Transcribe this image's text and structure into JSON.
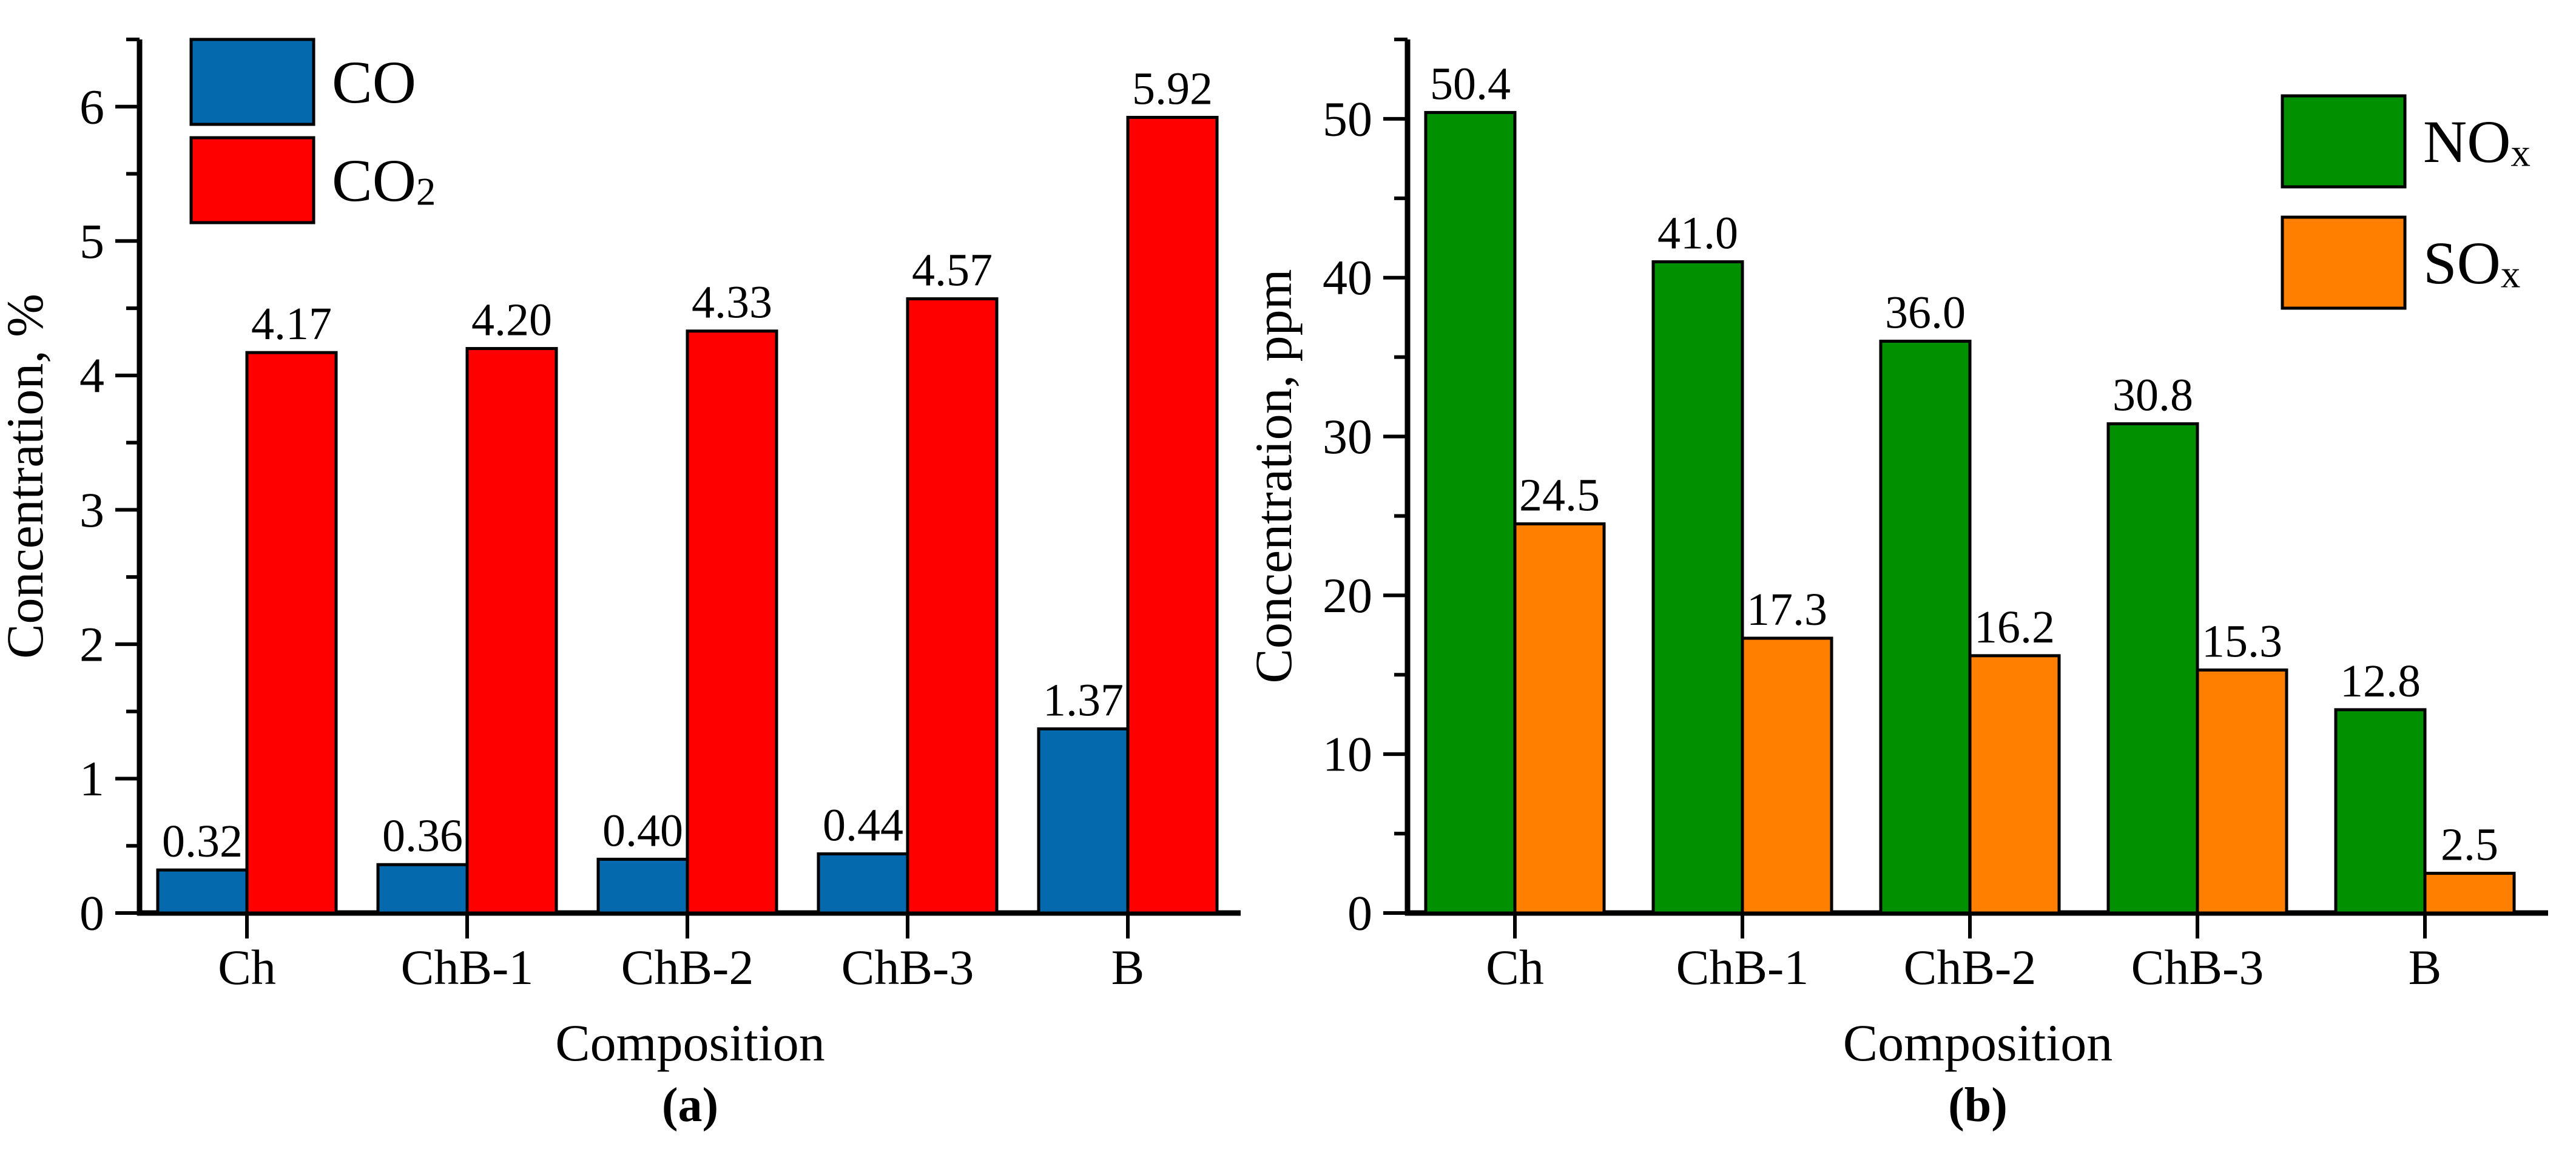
{
  "figure": {
    "background": "#FFFFFF",
    "axis_color": "#000000"
  },
  "chart_data": [
    {
      "type": "bar",
      "panel": "a",
      "caption": "(a)",
      "xlabel": "Composition",
      "ylabel": "Concentration, %",
      "categories": [
        "Ch",
        "ChB-1",
        "ChB-2",
        "ChB-3",
        "B"
      ],
      "series": [
        {
          "name": "CO",
          "sub": "",
          "color": "#0569AD",
          "values": [
            0.32,
            0.36,
            0.4,
            0.44,
            1.37
          ],
          "value_labels": [
            "0.32",
            "0.36",
            "0.40",
            "0.44",
            "1.37"
          ]
        },
        {
          "name": "CO",
          "sub": "2",
          "color": "#FF0000",
          "values": [
            4.17,
            4.2,
            4.33,
            4.57,
            5.92
          ],
          "value_labels": [
            "4.17",
            "4.20",
            "4.33",
            "4.57",
            "5.92"
          ]
        }
      ],
      "ylim": [
        0,
        6.5
      ],
      "ytick_interval": 1,
      "yminor_interval": 0.5,
      "ytick_labels": [
        "0",
        "1",
        "2",
        "3",
        "4",
        "5",
        "6"
      ],
      "legend_position": "top-left",
      "grid": false,
      "bar_edge_color": "#000000"
    },
    {
      "type": "bar",
      "panel": "b",
      "caption": "(b)",
      "xlabel": "Composition",
      "ylabel": "Concentration, ppm",
      "categories": [
        "Ch",
        "ChB-1",
        "ChB-2",
        "ChB-3",
        "B"
      ],
      "series": [
        {
          "name": "NO",
          "sub": "x",
          "color": "#009000",
          "values": [
            50.4,
            41.0,
            36.0,
            30.8,
            12.8
          ],
          "value_labels": [
            "50.4",
            "41.0",
            "36.0",
            "30.8",
            "12.8"
          ]
        },
        {
          "name": "SO",
          "sub": "x",
          "color": "#FF8000",
          "values": [
            24.5,
            17.3,
            16.2,
            15.3,
            2.5
          ],
          "value_labels": [
            "24.5",
            "17.3",
            "16.2",
            "15.3",
            "2.5"
          ]
        }
      ],
      "ylim": [
        0,
        55
      ],
      "ytick_interval": 10,
      "yminor_interval": 5,
      "ytick_labels": [
        "0",
        "10",
        "20",
        "30",
        "40",
        "50"
      ],
      "legend_position": "top-right",
      "grid": false,
      "bar_edge_color": "#000000"
    }
  ]
}
